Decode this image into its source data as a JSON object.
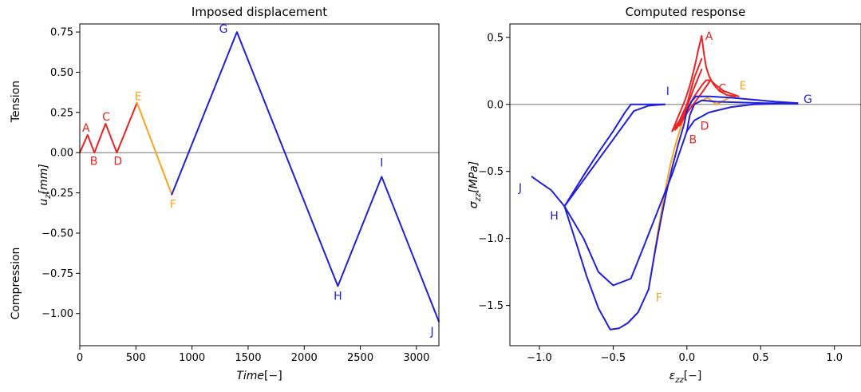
{
  "chart_data": [
    {
      "type": "line",
      "title": "Imposed displacement",
      "xlabel": "Time[−]",
      "ylabel": "u_z [mm]",
      "ylabel_main": "u",
      "ylabel_sub": "z",
      "ylabel_unit": "[mm]",
      "xlabel_main": "Time",
      "xlabel_unit": "[−]",
      "xlim": [
        0,
        3200
      ],
      "ylim": [
        -1.2,
        0.8
      ],
      "xticks": [
        0,
        500,
        1000,
        1500,
        2000,
        2500,
        3000
      ],
      "xtick_labels": [
        "0",
        "500",
        "1000",
        "1500",
        "2000",
        "2500",
        "3000"
      ],
      "yticks": [
        0.75,
        0.5,
        0.25,
        0.0,
        -0.25,
        -0.5,
        -0.75,
        -1.0
      ],
      "ytick_labels": [
        "0.75",
        "0.50",
        "0.25",
        "0.00",
        "−0.25",
        "−0.50",
        "−0.75",
        "−1.00"
      ],
      "side_labels": {
        "upper": "Tension",
        "lower": "Compression"
      },
      "zero_line": true,
      "series": [
        {
          "color": "#ee2222",
          "x": [
            0,
            70,
            130,
            230,
            330,
            510
          ],
          "y": [
            0.0,
            0.11,
            0.0,
            0.18,
            0.0,
            0.31
          ]
        },
        {
          "color": "#ffa31a",
          "x": [
            510,
            820
          ],
          "y": [
            0.31,
            -0.26
          ]
        },
        {
          "color": "#1f1fe0",
          "x": [
            820,
            1400,
            2300,
            2690,
            3200
          ],
          "y": [
            -0.26,
            0.75,
            -0.83,
            -0.15,
            -1.05
          ]
        }
      ],
      "annotations": [
        {
          "text": "A",
          "x": 55,
          "y": 0.155,
          "color": "#ee2222"
        },
        {
          "text": "B",
          "x": 125,
          "y": -0.05,
          "color": "#ee2222"
        },
        {
          "text": "C",
          "x": 235,
          "y": 0.225,
          "color": "#ee2222"
        },
        {
          "text": "D",
          "x": 340,
          "y": -0.05,
          "color": "#ee2222"
        },
        {
          "text": "E",
          "x": 520,
          "y": 0.35,
          "color": "#ffa31a"
        },
        {
          "text": "F",
          "x": 830,
          "y": -0.32,
          "color": "#ffa31a"
        },
        {
          "text": "G",
          "x": 1280,
          "y": 0.77,
          "color": "#1f1fe0"
        },
        {
          "text": "H",
          "x": 2300,
          "y": -0.89,
          "color": "#1f1fe0"
        },
        {
          "text": "I",
          "x": 2690,
          "y": -0.06,
          "color": "#1f1fe0"
        },
        {
          "text": "J",
          "x": 3140,
          "y": -1.11,
          "color": "#1f1fe0"
        }
      ]
    },
    {
      "type": "line",
      "title": "Computed response",
      "xlabel": "ε_zz [−]",
      "ylabel": "σ_zz [MPa]",
      "ylabel_main": "σ",
      "ylabel_sub": "zz",
      "ylabel_unit": "[MPa]",
      "xlabel_main": "ε",
      "xlabel_sub": "zz",
      "xlabel_unit": "[−]",
      "xlim": [
        -1.2,
        1.18
      ],
      "ylim": [
        -1.8,
        0.6
      ],
      "xticks": [
        -1.0,
        -0.5,
        0.0,
        0.5,
        1.0
      ],
      "xtick_labels": [
        "−1.0",
        "−0.5",
        "0.0",
        "0.5",
        "1.0"
      ],
      "yticks": [
        0.5,
        0.0,
        -0.5,
        -1.0,
        -1.5
      ],
      "ytick_labels": [
        "0.5",
        "0.0",
        "−0.5",
        "−1.0",
        "−1.5"
      ],
      "zero_line": true,
      "series": [
        {
          "color": "#ffa31a",
          "x": [
            -0.26,
            -0.23,
            -0.2,
            -0.17,
            -0.14,
            -0.11,
            -0.08,
            -0.05,
            -0.02,
            0.0
          ],
          "y": [
            -1.38,
            -1.18,
            -0.97,
            -0.78,
            -0.6,
            -0.44,
            -0.31,
            -0.2,
            -0.1,
            -0.03
          ]
        },
        {
          "color": "#ffa31a",
          "x": [
            0.0,
            0.07,
            0.14,
            0.2
          ],
          "y": [
            -0.02,
            0.01,
            0.05,
            0.0
          ]
        },
        {
          "color": "#ffa31a",
          "x": [
            0.2,
            0.27,
            0.33
          ],
          "y": [
            0.0,
            0.04,
            0.07
          ]
        },
        {
          "color": "#ee2222",
          "x": [
            -0.1,
            -0.07,
            -0.04,
            -0.01,
            0.02,
            0.05,
            0.08,
            0.1
          ],
          "y": [
            -0.2,
            -0.12,
            -0.04,
            0.04,
            0.14,
            0.27,
            0.42,
            0.51
          ]
        },
        {
          "color": "#ee2222",
          "x": [
            0.1,
            0.115,
            0.13,
            0.15,
            0.18,
            0.22,
            0.27,
            0.33
          ],
          "y": [
            0.51,
            0.38,
            0.28,
            0.21,
            0.15,
            0.1,
            0.07,
            0.06
          ]
        },
        {
          "color": "#ee2222",
          "x": [
            -0.1,
            -0.05,
            0.0,
            0.05,
            0.1
          ],
          "y": [
            -0.2,
            -0.12,
            0.0,
            0.2,
            0.34
          ]
        },
        {
          "color": "#ee2222",
          "x": [
            -0.08,
            -0.04,
            0.0,
            0.04,
            0.1
          ],
          "y": [
            -0.19,
            -0.11,
            -0.02,
            0.1,
            0.26
          ]
        },
        {
          "color": "#ee2222",
          "x": [
            -0.07,
            -0.03,
            0.01,
            0.05,
            0.1,
            0.13,
            0.16
          ],
          "y": [
            -0.18,
            -0.1,
            -0.02,
            0.06,
            0.14,
            0.18,
            0.18
          ]
        },
        {
          "color": "#ee2222",
          "x": [
            -0.05,
            -0.01,
            0.03,
            0.07,
            0.11,
            0.16
          ],
          "y": [
            -0.16,
            -0.08,
            -0.02,
            0.04,
            0.1,
            0.18
          ]
        },
        {
          "color": "#ee2222",
          "x": [
            0.16,
            0.2,
            0.25,
            0.3,
            0.35
          ],
          "y": [
            0.18,
            0.14,
            0.1,
            0.08,
            0.06
          ]
        },
        {
          "color": "#1f1fe0",
          "x": [
            -0.26,
            -0.22,
            -0.18,
            -0.14,
            -0.1,
            -0.06,
            -0.02,
            0.0,
            0.03,
            0.06
          ],
          "y": [
            -1.38,
            -1.12,
            -0.88,
            -0.66,
            -0.47,
            -0.3,
            -0.15,
            -0.05,
            0.02,
            0.06
          ]
        },
        {
          "color": "#1f1fe0",
          "x": [
            0.06,
            0.15,
            0.3,
            0.45,
            0.6,
            0.75
          ],
          "y": [
            0.06,
            0.06,
            0.05,
            0.035,
            0.02,
            0.01
          ]
        },
        {
          "color": "#1f1fe0",
          "x": [
            0.75,
            0.6,
            0.45,
            0.3,
            0.15,
            0.05,
            0.0
          ],
          "y": [
            0.01,
            0.005,
            0.0,
            -0.02,
            -0.06,
            -0.12,
            -0.2
          ]
        },
        {
          "color": "#1f1fe0",
          "x": [
            0.0,
            -0.1,
            -0.2,
            -0.3,
            -0.38,
            -0.5,
            -0.6,
            -0.7,
            -0.83
          ],
          "y": [
            -0.2,
            -0.52,
            -0.8,
            -1.08,
            -1.3,
            -1.35,
            -1.25,
            -1.0,
            -0.76
          ]
        },
        {
          "color": "#1f1fe0",
          "x": [
            -0.83,
            -0.7,
            -0.6,
            -0.5,
            -0.42,
            -0.38,
            -0.33,
            -0.26,
            -0.15
          ],
          "y": [
            -0.76,
            -0.53,
            -0.36,
            -0.2,
            -0.06,
            0.0,
            0.0,
            0.0,
            0.0
          ]
        },
        {
          "color": "#1f1fe0",
          "x": [
            -0.15,
            -0.26,
            -0.36,
            -0.83
          ],
          "y": [
            0.0,
            -0.01,
            -0.05,
            -0.76
          ]
        },
        {
          "color": "#1f1fe0",
          "x": [
            -0.83,
            -0.92,
            -1.0,
            -1.05
          ],
          "y": [
            -0.76,
            -0.64,
            -0.58,
            -0.54
          ]
        },
        {
          "color": "#1f1fe0",
          "x": [
            -0.83,
            -0.76,
            -0.68,
            -0.6,
            -0.52,
            -0.46,
            -0.4,
            -0.33,
            -0.26
          ],
          "y": [
            -0.76,
            -1.0,
            -1.28,
            -1.52,
            -1.68,
            -1.67,
            -1.63,
            -1.55,
            -1.38
          ]
        },
        {
          "color": "#1f1fe0",
          "x": [
            0.0,
            0.02,
            0.05,
            0.1,
            0.2,
            0.35,
            0.5,
            0.75
          ],
          "y": [
            -0.2,
            -0.08,
            0.0,
            0.03,
            0.02,
            0.015,
            0.01,
            0.005
          ]
        }
      ],
      "annotations": [
        {
          "text": "A",
          "x": 0.15,
          "y": 0.51,
          "color": "#ee2222"
        },
        {
          "text": "B",
          "x": 0.04,
          "y": -0.26,
          "color": "#ee2222"
        },
        {
          "text": "C",
          "x": 0.24,
          "y": 0.12,
          "color": "#ee2222"
        },
        {
          "text": "D",
          "x": 0.12,
          "y": -0.16,
          "color": "#ee2222"
        },
        {
          "text": "E",
          "x": 0.38,
          "y": 0.14,
          "color": "#ffa31a"
        },
        {
          "text": "F",
          "x": -0.19,
          "y": -1.44,
          "color": "#ffa31a"
        },
        {
          "text": "G",
          "x": 0.82,
          "y": 0.04,
          "color": "#1f1fe0"
        },
        {
          "text": "H",
          "x": -0.9,
          "y": -0.83,
          "color": "#1f1fe0"
        },
        {
          "text": "I",
          "x": -0.13,
          "y": 0.1,
          "color": "#1f1fe0"
        },
        {
          "text": "J",
          "x": -1.13,
          "y": -0.62,
          "color": "#1f1fe0"
        }
      ]
    }
  ]
}
